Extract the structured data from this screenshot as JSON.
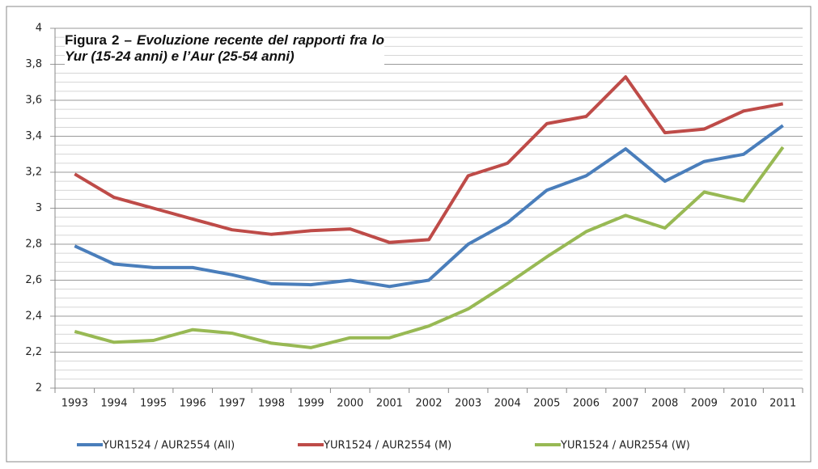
{
  "chart_data": {
    "type": "line",
    "title": "Figura 2 –",
    "subtitle": "Evoluzione recente del rapporti fra lo Yur (15-24 anni) e l’Aur (25-54 anni)",
    "categories": [
      "1993",
      "1994",
      "1995",
      "1996",
      "1997",
      "1998",
      "1999",
      "2000",
      "2001",
      "2002",
      "2003",
      "2004",
      "2005",
      "2006",
      "2007",
      "2008",
      "2009",
      "2010",
      "2011"
    ],
    "series": [
      {
        "name": "YUR1524 / AUR2554 (All)",
        "color": "#4a7ebb",
        "values": [
          2.79,
          2.69,
          2.67,
          2.67,
          2.63,
          2.58,
          2.575,
          2.6,
          2.565,
          2.6,
          2.8,
          2.92,
          3.1,
          3.18,
          3.33,
          3.15,
          3.26,
          3.3,
          3.46
        ]
      },
      {
        "name": "YUR1524 / AUR2554 (M)",
        "color": "#be4b48",
        "values": [
          3.19,
          3.06,
          3.0,
          2.94,
          2.88,
          2.855,
          2.875,
          2.885,
          2.81,
          2.825,
          3.18,
          3.25,
          3.47,
          3.51,
          3.73,
          3.42,
          3.44,
          3.54,
          3.58
        ]
      },
      {
        "name": "YUR1524 / AUR2554 (W)",
        "color": "#98b954",
        "values": [
          2.315,
          2.255,
          2.265,
          2.325,
          2.305,
          2.25,
          2.225,
          2.28,
          2.28,
          2.345,
          2.44,
          2.58,
          2.73,
          2.87,
          2.96,
          2.89,
          3.09,
          3.04,
          3.34
        ]
      }
    ],
    "ylim": [
      2,
      4
    ],
    "yticks": [
      2,
      {
        "value": 2.2,
        "label": "2,2"
      },
      {
        "value": 2.4,
        "label": "2,4"
      },
      {
        "value": 2.6,
        "label": "2,6"
      },
      {
        "value": 2.8,
        "label": "2,8"
      },
      3,
      {
        "value": 3.2,
        "label": "3,2"
      },
      {
        "value": 3.4,
        "label": "3,4"
      },
      {
        "value": 3.6,
        "label": "3,6"
      },
      {
        "value": 3.8,
        "label": "3,8"
      },
      4
    ],
    "grid": true,
    "legend": "bottom"
  }
}
